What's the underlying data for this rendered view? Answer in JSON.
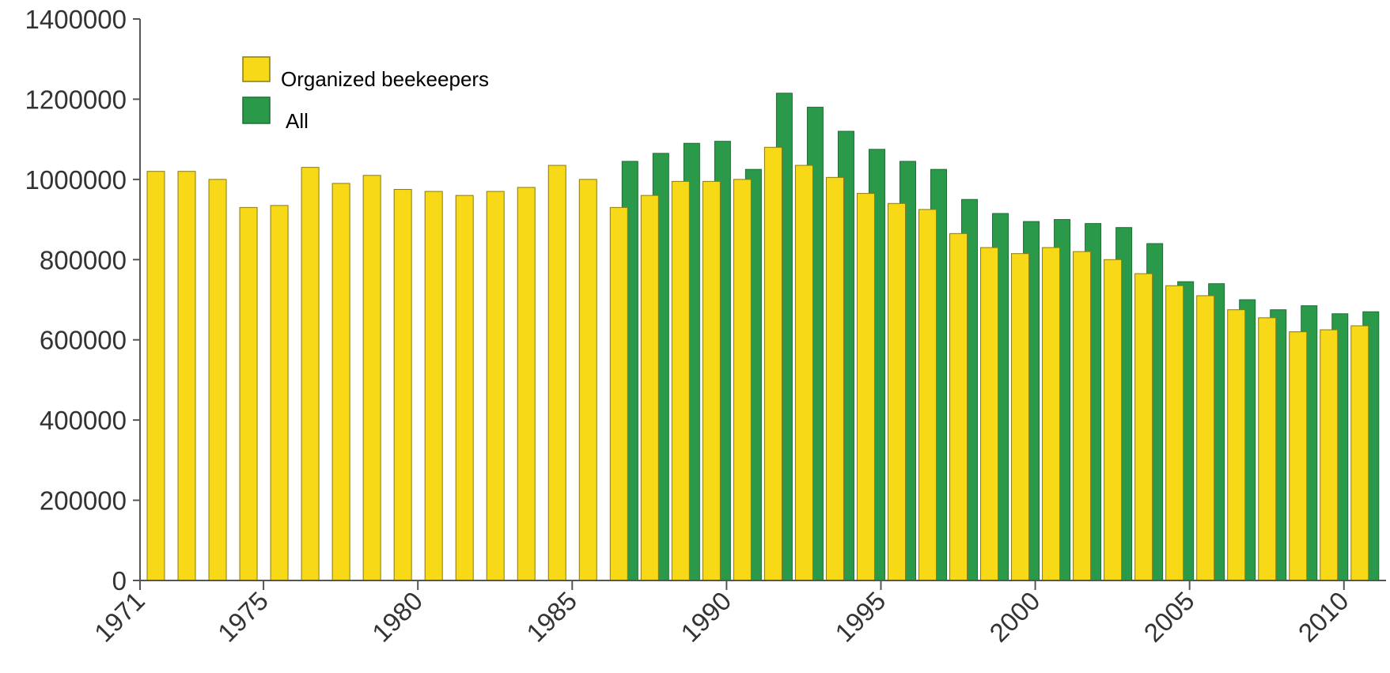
{
  "chart_data": {
    "type": "bar",
    "title": "",
    "xlabel": "",
    "ylabel": "",
    "ylim": [
      0,
      1400000
    ],
    "yticks": [
      0,
      200000,
      400000,
      600000,
      800000,
      1000000,
      1200000,
      1400000
    ],
    "ytick_labels": [
      "0",
      "200000",
      "400000",
      "600000",
      "800000",
      "1000000",
      "1200000",
      "1400000"
    ],
    "xtick_labels": [
      "1971",
      "1975",
      "1980",
      "1985",
      "1990",
      "1995",
      "2000",
      "2005",
      "2010"
    ],
    "legend_position": "top-left",
    "grid": false,
    "categories": [
      "1971",
      "1972",
      "1973",
      "1974",
      "1975",
      "1976",
      "1977",
      "1978",
      "1979",
      "1980",
      "1981",
      "1982",
      "1983",
      "1984",
      "1985",
      "1986",
      "1987",
      "1988",
      "1989",
      "1990",
      "1991",
      "1992",
      "1993",
      "1994",
      "1995",
      "1996",
      "1997",
      "1998",
      "1999",
      "2000",
      "2001",
      "2002",
      "2003",
      "2004",
      "2005",
      "2006",
      "2007",
      "2008",
      "2009",
      "2010"
    ],
    "series": [
      {
        "name": "Organized beekeepers",
        "color": "#f7d917",
        "values": [
          1020000,
          1020000,
          1000000,
          930000,
          935000,
          1030000,
          990000,
          1010000,
          975000,
          970000,
          960000,
          970000,
          980000,
          1035000,
          1000000,
          930000,
          960000,
          995000,
          995000,
          1000000,
          1080000,
          1035000,
          1005000,
          965000,
          940000,
          925000,
          865000,
          830000,
          815000,
          830000,
          820000,
          800000,
          765000,
          735000,
          710000,
          675000,
          655000,
          620000,
          625000,
          635000
        ]
      },
      {
        "name": "All",
        "color": "#2a9a4a",
        "values": [
          null,
          null,
          null,
          null,
          null,
          null,
          null,
          null,
          null,
          null,
          null,
          null,
          null,
          null,
          null,
          1045000,
          1065000,
          1090000,
          1095000,
          1025000,
          1215000,
          1180000,
          1120000,
          1075000,
          1045000,
          1025000,
          950000,
          915000,
          895000,
          900000,
          890000,
          880000,
          840000,
          745000,
          740000,
          700000,
          675000,
          685000,
          665000,
          670000
        ]
      }
    ]
  }
}
